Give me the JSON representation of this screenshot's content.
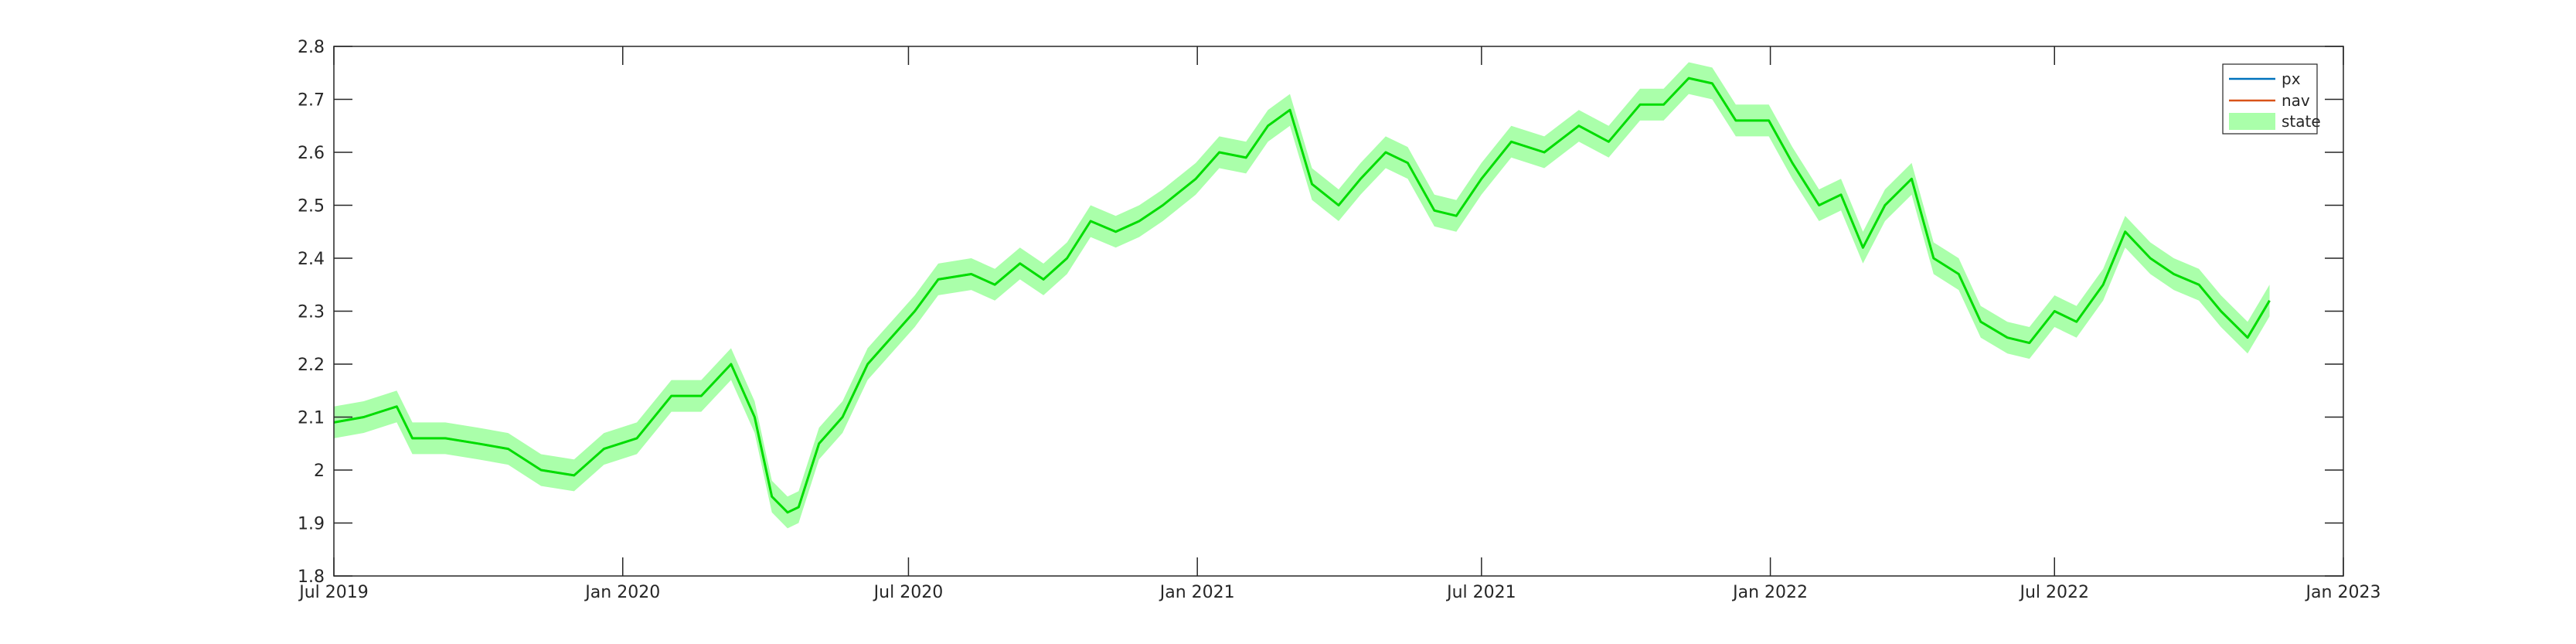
{
  "chart_data": {
    "type": "line",
    "title": "",
    "xlabel": "",
    "ylabel": "",
    "x_ticks": [
      "Jul 2019",
      "Jan 2020",
      "Jul 2020",
      "Jan 2021",
      "Jul 2021",
      "Jan 2022",
      "Jul 2022",
      "Jan 2023"
    ],
    "xlim": [
      "2019-07-01",
      "2023-01-01"
    ],
    "y_ticks": [
      "1.8",
      "1.9",
      "2",
      "2.1",
      "2.2",
      "2.3",
      "2.4",
      "2.5",
      "2.6",
      "2.7",
      "2.8"
    ],
    "ylim": [
      1.8,
      2.8
    ],
    "grid": false,
    "legend_position": "top-right",
    "band_halfwidth": 0.03,
    "colors": {
      "px": "#0072BD",
      "nav": "#D95319",
      "state": "#00DD00",
      "band": "#AAFFAA"
    },
    "x": [
      "2019-07-01",
      "2019-07-20",
      "2019-08-10",
      "2019-08-20",
      "2019-09-10",
      "2019-10-01",
      "2019-10-20",
      "2019-11-10",
      "2019-12-01",
      "2019-12-20",
      "2020-01-10",
      "2020-02-01",
      "2020-02-20",
      "2020-03-10",
      "2020-03-25",
      "2020-04-05",
      "2020-04-15",
      "2020-04-22",
      "2020-05-05",
      "2020-05-20",
      "2020-06-05",
      "2020-06-20",
      "2020-07-05",
      "2020-07-20",
      "2020-08-10",
      "2020-08-25",
      "2020-09-10",
      "2020-09-25",
      "2020-10-10",
      "2020-10-25",
      "2020-11-10",
      "2020-11-25",
      "2020-12-10",
      "2020-12-31",
      "2021-01-15",
      "2021-02-01",
      "2021-02-15",
      "2021-03-01",
      "2021-03-15",
      "2021-04-01",
      "2021-04-15",
      "2021-05-01",
      "2021-05-15",
      "2021-06-01",
      "2021-06-15",
      "2021-07-01",
      "2021-07-20",
      "2021-08-10",
      "2021-09-01",
      "2021-09-20",
      "2021-10-10",
      "2021-10-25",
      "2021-11-10",
      "2021-11-25",
      "2021-12-10",
      "2021-12-31",
      "2022-01-15",
      "2022-02-01",
      "2022-02-15",
      "2022-03-01",
      "2022-03-15",
      "2022-04-01",
      "2022-04-15",
      "2022-05-01",
      "2022-05-15",
      "2022-06-01",
      "2022-06-15",
      "2022-07-01",
      "2022-07-15",
      "2022-08-01",
      "2022-08-15",
      "2022-08-31",
      "2022-09-15",
      "2022-10-01",
      "2022-10-15",
      "2022-11-01",
      "2022-11-15"
    ],
    "series": [
      {
        "name": "px",
        "values": [
          2.09,
          2.1,
          2.12,
          2.06,
          2.06,
          2.05,
          2.04,
          2.0,
          1.99,
          2.04,
          2.06,
          2.14,
          2.14,
          2.2,
          2.1,
          1.95,
          1.92,
          1.93,
          2.05,
          2.1,
          2.2,
          2.25,
          2.3,
          2.36,
          2.37,
          2.35,
          2.39,
          2.36,
          2.4,
          2.47,
          2.45,
          2.47,
          2.5,
          2.55,
          2.6,
          2.59,
          2.65,
          2.68,
          2.54,
          2.5,
          2.55,
          2.6,
          2.58,
          2.49,
          2.48,
          2.55,
          2.62,
          2.6,
          2.65,
          2.62,
          2.69,
          2.69,
          2.74,
          2.73,
          2.66,
          2.66,
          2.58,
          2.5,
          2.52,
          2.42,
          2.5,
          2.55,
          2.4,
          2.37,
          2.28,
          2.25,
          2.24,
          2.3,
          2.28,
          2.35,
          2.45,
          2.4,
          2.37,
          2.35,
          2.3,
          2.25,
          2.32
        ]
      },
      {
        "name": "nav",
        "values": [
          2.09,
          2.1,
          2.12,
          2.06,
          2.06,
          2.05,
          2.04,
          2.0,
          1.99,
          2.04,
          2.06,
          2.14,
          2.14,
          2.2,
          2.1,
          1.95,
          1.92,
          1.93,
          2.05,
          2.1,
          2.2,
          2.25,
          2.3,
          2.36,
          2.37,
          2.35,
          2.39,
          2.36,
          2.4,
          2.47,
          2.45,
          2.47,
          2.5,
          2.55,
          2.6,
          2.59,
          2.65,
          2.68,
          2.54,
          2.5,
          2.55,
          2.6,
          2.58,
          2.49,
          2.48,
          2.55,
          2.62,
          2.6,
          2.65,
          2.62,
          2.69,
          2.69,
          2.74,
          2.73,
          2.66,
          2.66,
          2.58,
          2.5,
          2.52,
          2.42,
          2.5,
          2.55,
          2.4,
          2.37,
          2.28,
          2.25,
          2.24,
          2.3,
          2.28,
          2.35,
          2.45,
          2.4,
          2.37,
          2.35,
          2.3,
          2.25,
          2.32
        ]
      },
      {
        "name": "state",
        "values": [
          2.09,
          2.1,
          2.12,
          2.06,
          2.06,
          2.05,
          2.04,
          2.0,
          1.99,
          2.04,
          2.06,
          2.14,
          2.14,
          2.2,
          2.1,
          1.95,
          1.92,
          1.93,
          2.05,
          2.1,
          2.2,
          2.25,
          2.3,
          2.36,
          2.37,
          2.35,
          2.39,
          2.36,
          2.4,
          2.47,
          2.45,
          2.47,
          2.5,
          2.55,
          2.6,
          2.59,
          2.65,
          2.68,
          2.54,
          2.5,
          2.55,
          2.6,
          2.58,
          2.49,
          2.48,
          2.55,
          2.62,
          2.6,
          2.65,
          2.62,
          2.69,
          2.69,
          2.74,
          2.73,
          2.66,
          2.66,
          2.58,
          2.5,
          2.52,
          2.42,
          2.5,
          2.55,
          2.4,
          2.37,
          2.28,
          2.25,
          2.24,
          2.3,
          2.28,
          2.35,
          2.45,
          2.4,
          2.37,
          2.35,
          2.3,
          2.25,
          2.32
        ]
      }
    ]
  }
}
